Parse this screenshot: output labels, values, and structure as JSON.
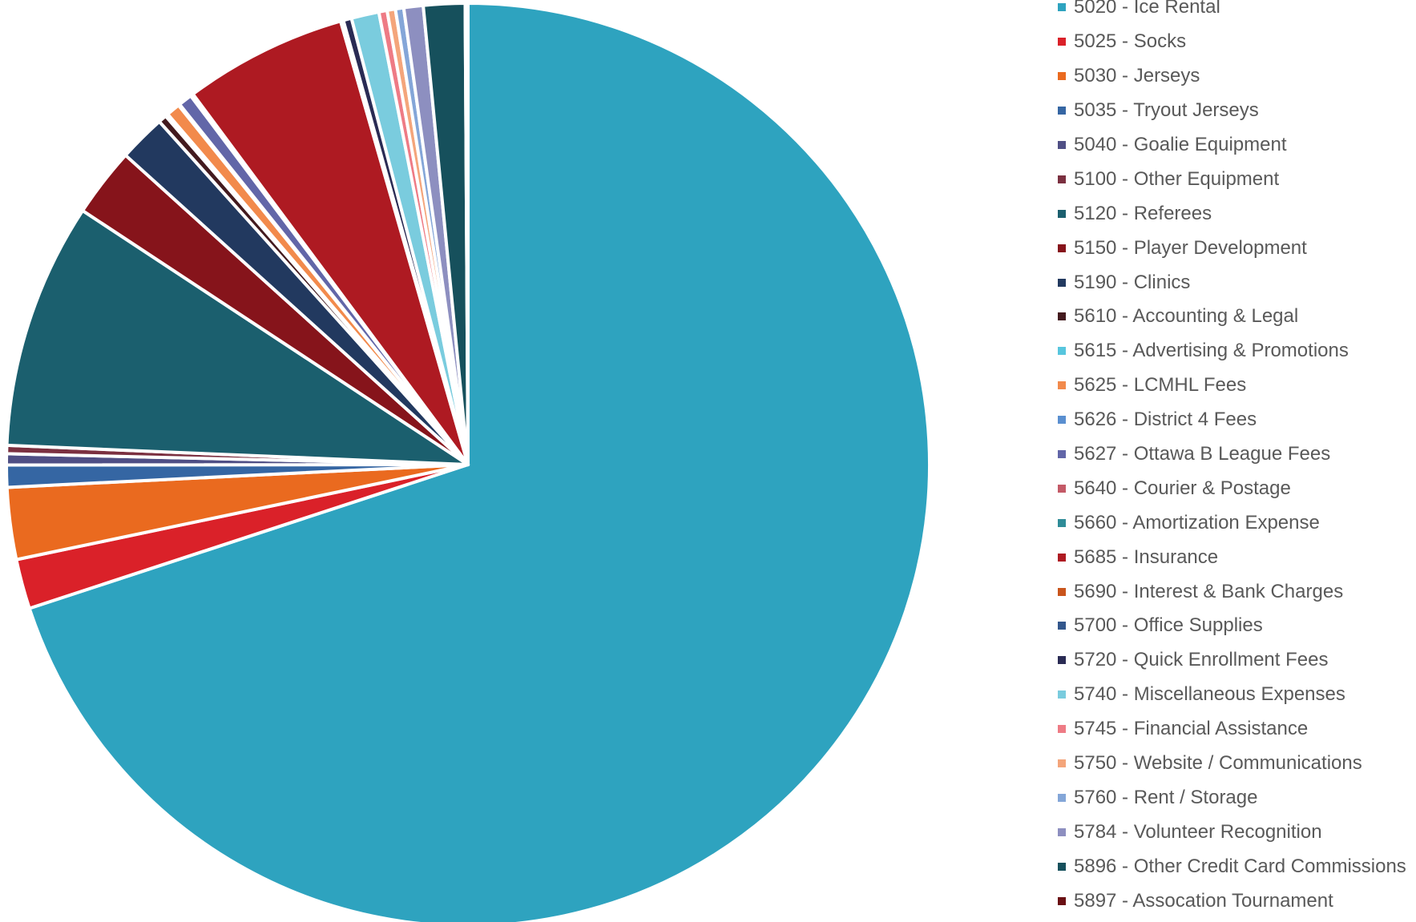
{
  "chart_data": {
    "type": "pie",
    "title": "",
    "legend_position": "right",
    "slices": [
      {
        "label": "5020 - Ice Rental",
        "value": 72.3,
        "color": "#2ea3bf"
      },
      {
        "label": "5025 - Socks",
        "value": 1.8,
        "color": "#da2129"
      },
      {
        "label": "5030 - Jerseys",
        "value": 2.6,
        "color": "#ea6a1f"
      },
      {
        "label": "5035 - Tryout Jerseys",
        "value": 0.8,
        "color": "#3566a3"
      },
      {
        "label": "5040 - Goalie Equipment",
        "value": 0.4,
        "color": "#4f4f85"
      },
      {
        "label": "5100 - Other Equipment",
        "value": 0.3,
        "color": "#7b3040"
      },
      {
        "label": "5120 - Referees",
        "value": 8.9,
        "color": "#1b5f6e"
      },
      {
        "label": "5150 - Player Development",
        "value": 2.5,
        "color": "#86141b"
      },
      {
        "label": "5190 - Clinics",
        "value": 1.7,
        "color": "#22395f"
      },
      {
        "label": "5610 - Accounting & Legal",
        "value": 0.3,
        "color": "#431a1e"
      },
      {
        "label": "5615 - Advertising & Promotions",
        "value": 0.1,
        "color": "#57c6de"
      },
      {
        "label": "5625 - LCMHL Fees",
        "value": 0.5,
        "color": "#f28a4c"
      },
      {
        "label": "5626 - District 4 Fees",
        "value": 0.05,
        "color": "#5a8fd0"
      },
      {
        "label": "5627 - Ottawa B League Fees",
        "value": 0.5,
        "color": "#6266a8"
      },
      {
        "label": "5640 - Courier & Postage",
        "value": 0.05,
        "color": "#c45a67"
      },
      {
        "label": "5660 - Amortization Expense",
        "value": 0.05,
        "color": "#2f8c98"
      },
      {
        "label": "5685 - Insurance",
        "value": 5.9,
        "color": "#ae1a22"
      },
      {
        "label": "5690 - Interest & Bank Charges",
        "value": 0.05,
        "color": "#c9551c"
      },
      {
        "label": "5700 - Office Supplies",
        "value": 0.05,
        "color": "#33578c"
      },
      {
        "label": "5720 - Quick Enrollment Fees",
        "value": 0.3,
        "color": "#2a2b54"
      },
      {
        "label": "5740 - Miscellaneous Expenses",
        "value": 1.0,
        "color": "#7accde"
      },
      {
        "label": "5745 - Financial Assistance",
        "value": 0.3,
        "color": "#ee7b85"
      },
      {
        "label": "5750 - Website / Communications",
        "value": 0.3,
        "color": "#f4a57b"
      },
      {
        "label": "5760 - Rent / Storage",
        "value": 0.3,
        "color": "#84a6d8"
      },
      {
        "label": "5784 - Volunteer Recognition",
        "value": 0.7,
        "color": "#8d8fc0"
      },
      {
        "label": "5896 - Other Credit Card Commissions",
        "value": 1.5,
        "color": "#16505c"
      },
      {
        "label": "5897 - Assocation Tournament",
        "value": 0.1,
        "color": "#6a1013"
      }
    ]
  }
}
